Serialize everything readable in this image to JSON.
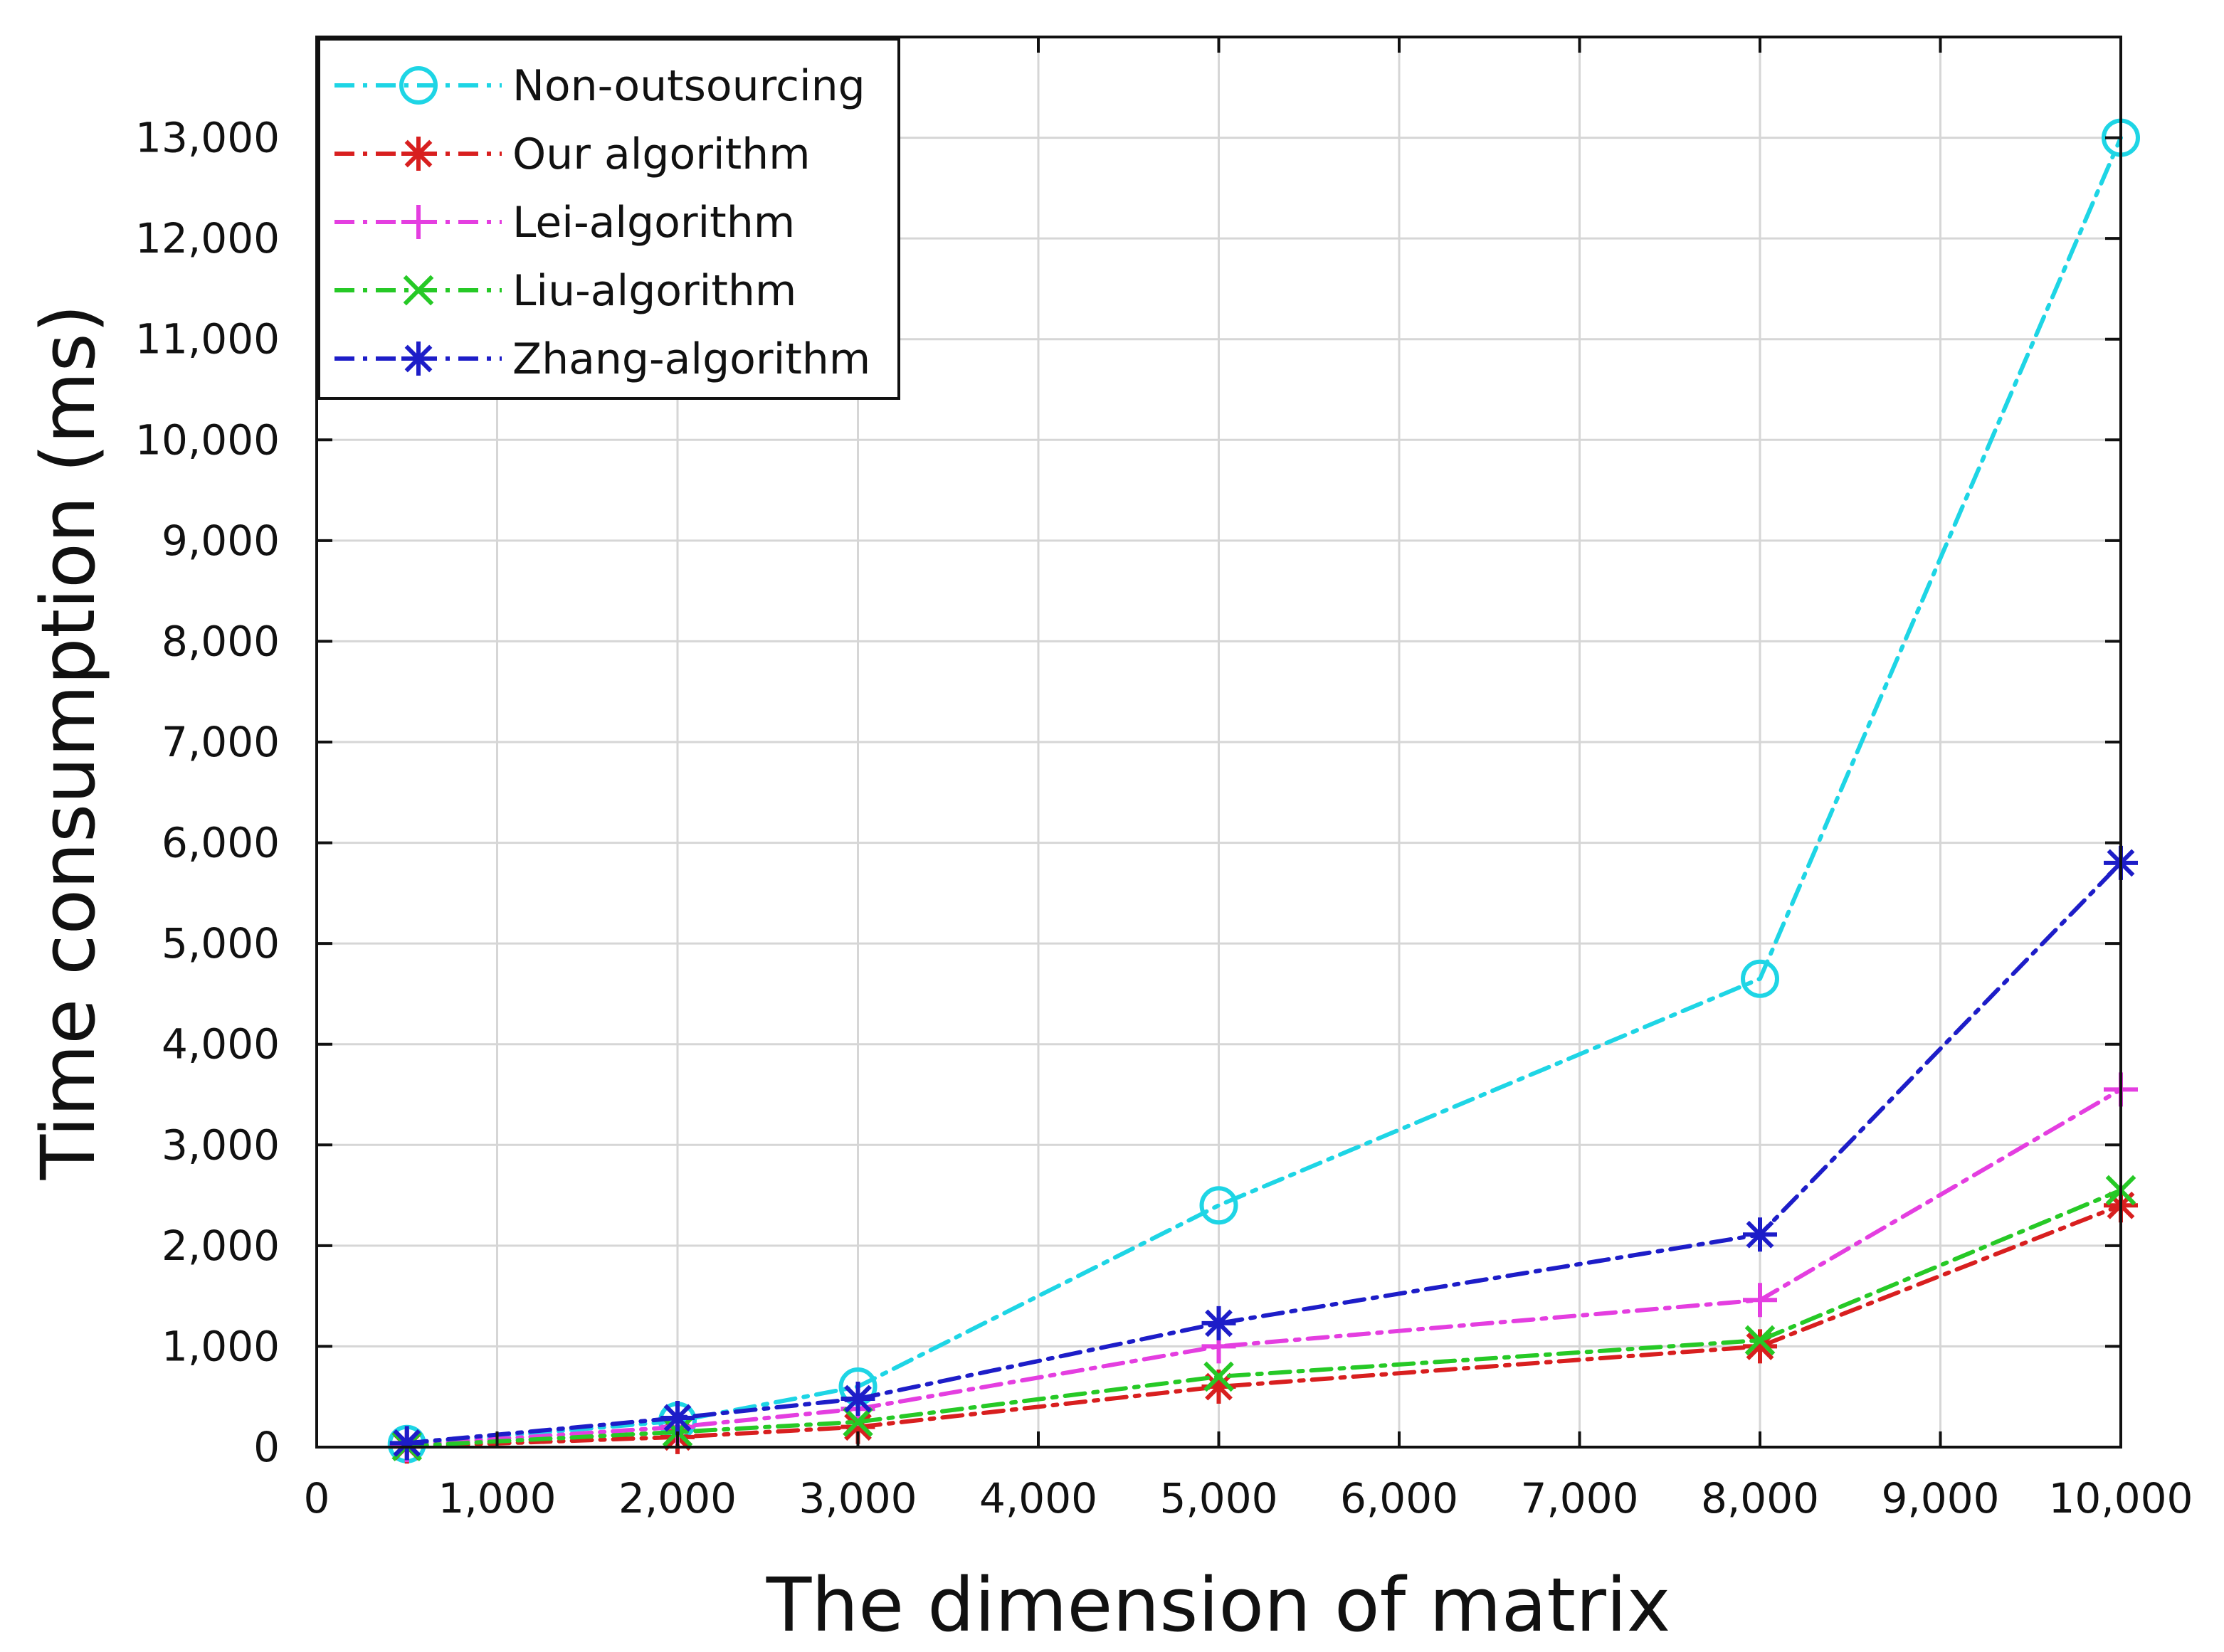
{
  "chart_data": {
    "type": "line",
    "title": "",
    "xlabel": "The dimension of matrix",
    "ylabel": "Time consumption (ms)",
    "xlim": [
      0,
      10000
    ],
    "ylim": [
      0,
      14000
    ],
    "x_ticks": [
      0,
      1000,
      2000,
      3000,
      4000,
      5000,
      6000,
      7000,
      8000,
      9000,
      10000
    ],
    "x_tick_labels": [
      "0",
      "1,000",
      "2,000",
      "3,000",
      "4,000",
      "5,000",
      "6,000",
      "7,000",
      "8,000",
      "9,000",
      "10,000"
    ],
    "y_ticks": [
      0,
      1000,
      2000,
      3000,
      4000,
      5000,
      6000,
      7000,
      8000,
      9000,
      10000,
      11000,
      12000,
      13000
    ],
    "y_tick_labels": [
      "0",
      "1,000",
      "2,000",
      "3,000",
      "4,000",
      "5,000",
      "6,000",
      "7,000",
      "8,000",
      "9,000",
      "10,000",
      "11,000",
      "12,000",
      "13,000"
    ],
    "grid": true,
    "legend_position": "top-left",
    "x": [
      500,
      2000,
      3000,
      5000,
      8000,
      10000
    ],
    "series": [
      {
        "name": "Non-outsourcing",
        "color": "#1ed5e5",
        "marker": "circle",
        "values": [
          30,
          260,
          600,
          2400,
          4650,
          13000
        ]
      },
      {
        "name": "Our algorithm",
        "color": "#d81f1f",
        "marker": "asterisk",
        "values": [
          5,
          100,
          200,
          600,
          1000,
          2400
        ]
      },
      {
        "name": "Lei-algorithm",
        "color": "#e43ee0",
        "marker": "plus",
        "values": [
          20,
          200,
          380,
          1000,
          1460,
          3550
        ]
      },
      {
        "name": "Liu-algorithm",
        "color": "#26c926",
        "marker": "x",
        "values": [
          10,
          150,
          250,
          700,
          1060,
          2550
        ]
      },
      {
        "name": "Zhang-algorithm",
        "color": "#1d1dc8",
        "marker": "asterisk",
        "values": [
          40,
          290,
          480,
          1230,
          2110,
          5800
        ]
      }
    ]
  }
}
